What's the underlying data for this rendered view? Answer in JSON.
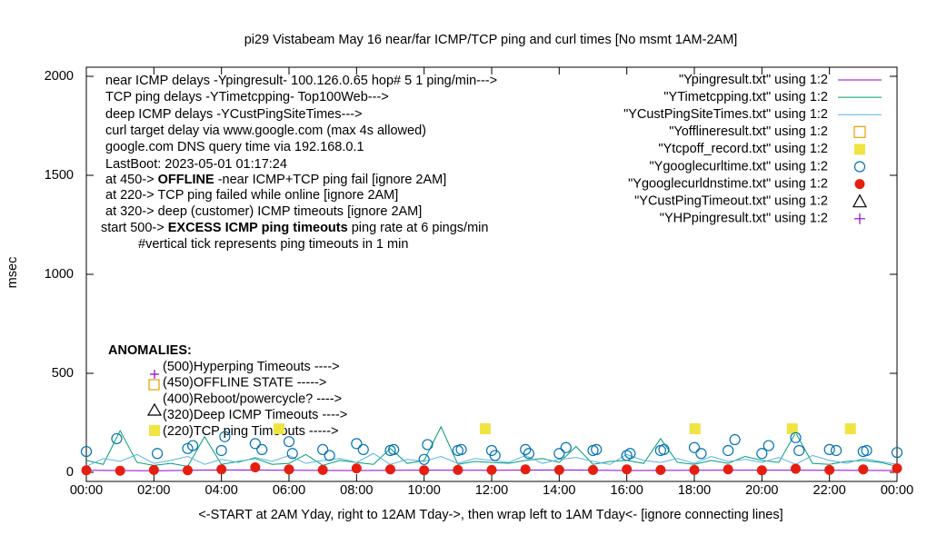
{
  "chart_data": {
    "type": "line",
    "title": "pi29 Vistabeam May 16  near/far ICMP/TCP ping and curl times [No msmt 1AM-2AM]",
    "xlabel": "<-START at 2AM Yday, right to 12AM Tday->, then wrap left to 1AM Tday<- [ignore connecting lines]",
    "ylabel": "msec",
    "xlim": [
      0,
      24
    ],
    "ylim": [
      -46,
      2046
    ],
    "xticks": [
      {
        "value": 0,
        "label": "00:00"
      },
      {
        "value": 2,
        "label": "02:00"
      },
      {
        "value": 4,
        "label": "04:00"
      },
      {
        "value": 6,
        "label": "06:00"
      },
      {
        "value": 8,
        "label": "08:00"
      },
      {
        "value": 10,
        "label": "10:00"
      },
      {
        "value": 12,
        "label": "12:00"
      },
      {
        "value": 14,
        "label": "14:00"
      },
      {
        "value": 16,
        "label": "16:00"
      },
      {
        "value": 18,
        "label": "18:00"
      },
      {
        "value": 20,
        "label": "20:00"
      },
      {
        "value": 22,
        "label": "22:00"
      },
      {
        "value": 24,
        "label": "00:00"
      }
    ],
    "yticks": [
      0,
      500,
      1000,
      1500,
      2000
    ],
    "annotations": [
      {
        "parts": [
          "near ICMP delays -Ypingresult- 100.126.0.65 hop# 5 1 ping/min--->"
        ]
      },
      {
        "parts": [
          "TCP ping delays -YTimetcpping- Top100Web--->"
        ]
      },
      {
        "parts": [
          "deep ICMP delays -YCustPingSiteTimes--->"
        ]
      },
      {
        "parts": [
          "curl target delay via www.google.com (max 4s allowed)"
        ]
      },
      {
        "parts": [
          "google.com DNS query time via 192.168.0.1"
        ]
      },
      {
        "parts": [
          "LastBoot: 2023-05-01 01:17:24"
        ]
      },
      {
        "parts": [
          "at 450-> ",
          "OFFLINE",
          " -near ICMP+TCP ping fail [ignore 2AM]"
        ],
        "bold_part": 1
      },
      {
        "parts": [
          "at 220-> TCP ping failed while online [ignore 2AM]"
        ]
      },
      {
        "parts": [
          "at 320-> deep (customer) ICMP timeouts [ignore 2AM]"
        ]
      },
      {
        "parts": [
          "start 500-> ",
          "EXCESS ICMP ping timeouts",
          "  ping rate at 6 pings/min"
        ],
        "bold_part": 1
      },
      {
        "parts": [
          "#vertical tick represents ping timeouts in 1 min"
        ]
      }
    ],
    "anomalies_title": "ANOMALIES:",
    "anomalies": [
      "(500)Hyperping Timeouts ---->",
      "(450)OFFLINE STATE ----->",
      "(400)Reboot/powercycle? ---->",
      "(320)Deep ICMP Timeouts ---->",
      "(220)TCP ping Timeouts ----->"
    ],
    "series": [
      {
        "name": "\"Ypingresult.txt\" using 1:2",
        "color": "#9400d3",
        "marker": "line",
        "x": [
          0,
          2,
          4,
          6,
          8,
          10,
          12,
          14,
          16,
          18,
          20,
          22,
          24
        ],
        "values": [
          10,
          8,
          12,
          10,
          9,
          11,
          10,
          12,
          9,
          10,
          11,
          10,
          9
        ]
      },
      {
        "name": "\"YTimetcpping.txt\" using 1:2",
        "color": "#009e73",
        "marker": "line",
        "x": [
          0,
          0.5,
          1,
          1.5,
          2,
          2.5,
          3,
          3.5,
          4,
          4.5,
          5,
          5.5,
          6,
          6.5,
          7,
          7.5,
          8,
          8.5,
          9,
          9.5,
          10,
          10.5,
          11,
          11.5,
          12,
          12.5,
          13,
          13.5,
          14,
          14.5,
          15,
          15.5,
          16,
          16.5,
          17,
          17.5,
          18,
          18.5,
          19,
          19.5,
          20,
          20.5,
          21,
          21.5,
          22,
          22.5,
          23,
          23.5,
          24
        ],
        "values": [
          60,
          40,
          210,
          50,
          35,
          45,
          30,
          180,
          40,
          55,
          70,
          40,
          45,
          90,
          35,
          60,
          50,
          40,
          120,
          45,
          60,
          230,
          40,
          55,
          50,
          45,
          60,
          70,
          50,
          130,
          40,
          55,
          60,
          45,
          170,
          50,
          40,
          60,
          45,
          80,
          60,
          50,
          200,
          45,
          40,
          55,
          60,
          50,
          30
        ]
      },
      {
        "name": "\"YCustPingSiteTimes.txt\" using 1:2",
        "color": "#56b4e9",
        "marker": "line",
        "x": [
          0,
          0.5,
          1,
          1.5,
          2,
          2.5,
          3,
          3.5,
          4,
          4.5,
          5,
          5.5,
          6,
          6.5,
          7,
          7.5,
          8,
          8.5,
          9,
          9.5,
          10,
          10.5,
          11,
          11.5,
          12,
          12.5,
          13,
          13.5,
          14,
          14.5,
          15,
          15.5,
          16,
          16.5,
          17,
          17.5,
          18,
          18.5,
          19,
          19.5,
          20,
          20.5,
          21,
          21.5,
          22,
          22.5,
          23,
          23.5,
          24
        ],
        "values": [
          30,
          70,
          55,
          90,
          45,
          60,
          80,
          40,
          65,
          50,
          75,
          55,
          85,
          45,
          60,
          70,
          50,
          95,
          40,
          65,
          55,
          80,
          45,
          70,
          60,
          50,
          85,
          45,
          65,
          75,
          55,
          40,
          90,
          60,
          50,
          70,
          45,
          80,
          55,
          65,
          50,
          75,
          40,
          85,
          60,
          45,
          70,
          55,
          40
        ]
      },
      {
        "name": "\"Yofflineresult.txt\" using 1:2",
        "color": "#e69f00",
        "marker": "square-open",
        "x": [],
        "values": []
      },
      {
        "name": "\"Ytcpoff_record.txt\" using 1:2",
        "color": "#f0e442",
        "marker": "square-filled",
        "x": [
          5.7,
          11.81,
          18.02,
          20.9,
          22.62
        ],
        "values": [
          220,
          220,
          220,
          220,
          220
        ]
      },
      {
        "name": "\"Ygooglecurltime.txt\" using 1:2",
        "color": "#0072b2",
        "marker": "circle-open",
        "x": [
          0,
          0.9,
          2.1,
          3.0,
          3.15,
          4.0,
          4.1,
          5.0,
          5.2,
          6.0,
          6.1,
          7.0,
          7.2,
          8.0,
          8.2,
          9.0,
          9.1,
          10.0,
          10.1,
          11.0,
          11.1,
          12.0,
          12.1,
          13.0,
          13.1,
          14.0,
          14.2,
          15.0,
          15.1,
          16.0,
          16.1,
          17.0,
          17.1,
          18.0,
          18.2,
          19.0,
          19.2,
          20.0,
          20.2,
          21.0,
          21.1,
          22.0,
          22.2,
          23.0,
          23.1,
          24.0
        ],
        "values": [
          105,
          170,
          95,
          120,
          135,
          110,
          180,
          145,
          115,
          155,
          95,
          115,
          85,
          145,
          115,
          110,
          115,
          65,
          140,
          110,
          115,
          110,
          85,
          115,
          95,
          95,
          125,
          110,
          115,
          85,
          95,
          110,
          115,
          125,
          95,
          110,
          165,
          95,
          135,
          175,
          110,
          115,
          110,
          105,
          110,
          100
        ]
      },
      {
        "name": "\"Ygooglecurldnstime.txt\" using 1:2",
        "color": "#e51e10",
        "marker": "circle-filled",
        "x": [
          0,
          1,
          2,
          3,
          4,
          5,
          6,
          7,
          8,
          9,
          10,
          11,
          12,
          13,
          14,
          15,
          16,
          17,
          18,
          19,
          20,
          21,
          22,
          23,
          24
        ],
        "values": [
          10,
          8,
          12,
          10,
          15,
          25,
          15,
          12,
          20,
          15,
          10,
          12,
          12,
          15,
          12,
          12,
          15,
          12,
          12,
          15,
          10,
          18,
          12,
          15,
          20
        ]
      },
      {
        "name": "\"YCustPingTimeout.txt\" using 1:2",
        "color": "#000000",
        "marker": "triangle-open",
        "x": [],
        "values": []
      },
      {
        "name": "\"YHPpingresult.txt\" using 1:2",
        "color": "#9400d3",
        "marker": "plus",
        "x": [],
        "values": []
      }
    ]
  }
}
